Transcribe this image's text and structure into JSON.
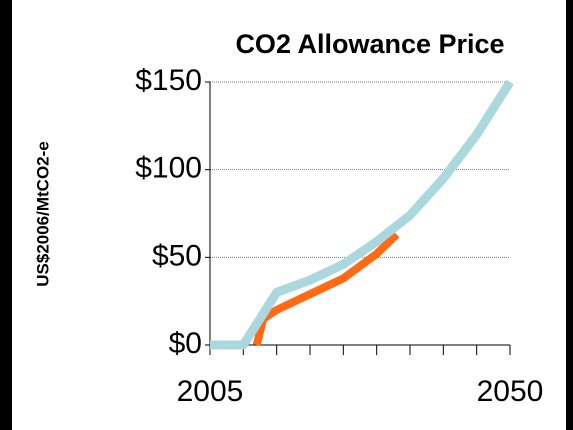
{
  "chart_data": {
    "type": "line",
    "title": "CO2  Allowance  Price",
    "y_label": "US$2006/MtCO2-e",
    "xlim": [
      2005,
      2050
    ],
    "xticks": [
      2005,
      2050
    ],
    "x_minor_ticks": [
      2010,
      2015,
      2020,
      2025,
      2030,
      2035,
      2040,
      2045
    ],
    "ylim": [
      0,
      150
    ],
    "yticks": [
      {
        "value": 0,
        "label": "$0"
      },
      {
        "value": 50,
        "label": "$50"
      },
      {
        "value": 100,
        "label": "$100"
      },
      {
        "value": 150,
        "label": "$150"
      }
    ],
    "grid": true,
    "series": [
      {
        "color": "#ff6a13",
        "x": [
          2012,
          2013,
          2015,
          2020,
          2025,
          2030,
          2033
        ],
        "values": [
          0,
          15,
          20,
          29,
          38,
          52,
          63
        ]
      },
      {
        "color": "#aad8dc",
        "x": [
          2005,
          2010,
          2015,
          2020,
          2025,
          2030,
          2035,
          2040,
          2045,
          2050
        ],
        "values": [
          0,
          0,
          30,
          37,
          46,
          59,
          74,
          95,
          120,
          150
        ]
      }
    ]
  }
}
